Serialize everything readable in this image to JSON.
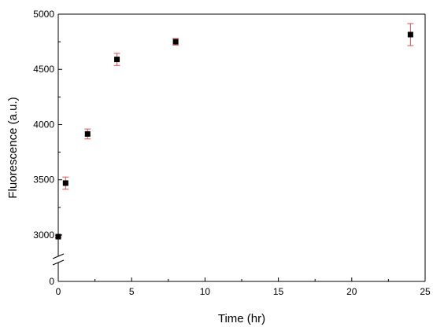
{
  "chart_data": {
    "type": "scatter",
    "xlabel": "Time (hr)",
    "ylabel": "Fluorescence (a.u.)",
    "xlim": [
      0,
      25
    ],
    "ylim_upper": [
      2900,
      5000
    ],
    "ylim_lower": [
      0,
      0
    ],
    "y_axis_break": true,
    "x_ticks": [
      "0",
      "5",
      "10",
      "15",
      "20",
      "25"
    ],
    "y_ticks": [
      "0",
      "3000",
      "3500",
      "4000",
      "4500",
      "5000"
    ],
    "grid": false,
    "marker_color": "#000000",
    "errorbar_color": "#e05050",
    "points": [
      {
        "x": 0,
        "y": 2985,
        "err": 10
      },
      {
        "x": 0.5,
        "y": 3470,
        "err": 55
      },
      {
        "x": 2,
        "y": 3915,
        "err": 45
      },
      {
        "x": 4,
        "y": 4590,
        "err": 55
      },
      {
        "x": 8,
        "y": 4750,
        "err": 30
      },
      {
        "x": 24,
        "y": 4815,
        "err": 100
      }
    ]
  }
}
